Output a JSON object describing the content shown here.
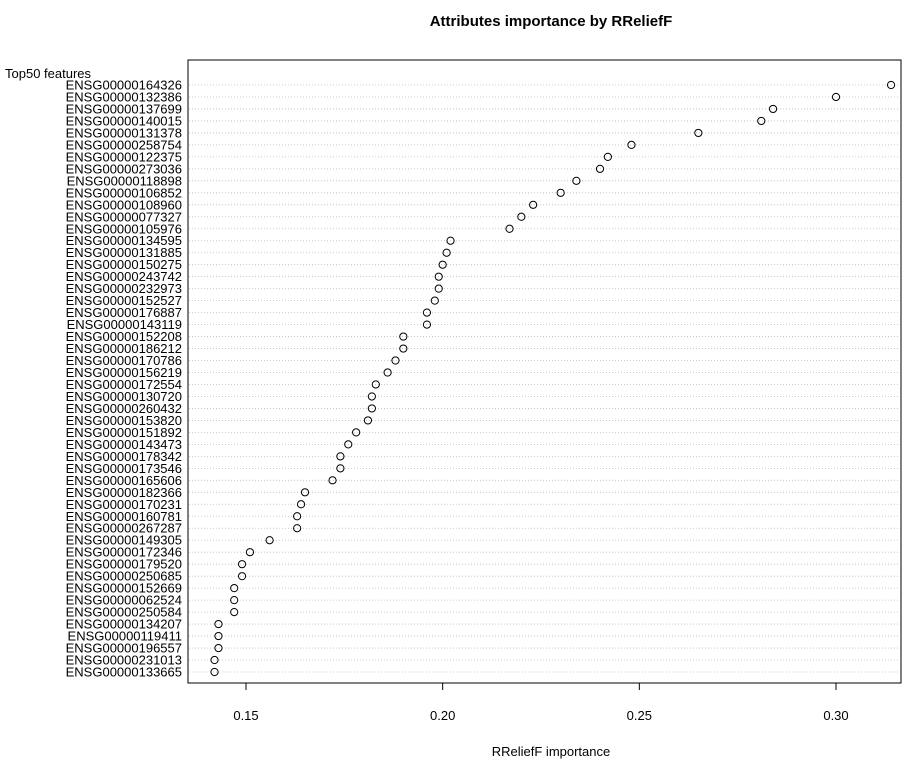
{
  "chart_data": {
    "type": "scatter",
    "title": "Attributes importance by RReliefF",
    "xlabel": "RReliefF importance",
    "ylabel": "Top50 features",
    "xlim": [
      0.1385,
      0.3175
    ],
    "xticks": [
      "0.15",
      "0.20",
      "0.25",
      "0.30"
    ],
    "xtick_values": [
      0.15,
      0.2,
      0.25,
      0.3
    ],
    "grid": "horizontal dotted",
    "marker": "open circle",
    "categories": [
      "ENSG00000164326",
      "ENSG00000132386",
      "ENSG00000137699",
      "ENSG00000140015",
      "ENSG00000131378",
      "ENSG00000258754",
      "ENSG00000122375",
      "ENSG00000273036",
      "ENSG00000118898",
      "ENSG00000106852",
      "ENSG00000108960",
      "ENSG00000077327",
      "ENSG00000105976",
      "ENSG00000134595",
      "ENSG00000131885",
      "ENSG00000150275",
      "ENSG00000243742",
      "ENSG00000232973",
      "ENSG00000152527",
      "ENSG00000176887",
      "ENSG00000143119",
      "ENSG00000152208",
      "ENSG00000186212",
      "ENSG00000170786",
      "ENSG00000156219",
      "ENSG00000172554",
      "ENSG00000130720",
      "ENSG00000260432",
      "ENSG00000153820",
      "ENSG00000151892",
      "ENSG00000143473",
      "ENSG00000178342",
      "ENSG00000173546",
      "ENSG00000165606",
      "ENSG00000182366",
      "ENSG00000170231",
      "ENSG00000160781",
      "ENSG00000267287",
      "ENSG00000149305",
      "ENSG00000172346",
      "ENSG00000179520",
      "ENSG00000250685",
      "ENSG00000152669",
      "ENSG00000062524",
      "ENSG00000250584",
      "ENSG00000134207",
      "ENSG00000119411",
      "ENSG00000196557",
      "ENSG00000231013",
      "ENSG00000133665"
    ],
    "values": [
      0.314,
      0.3,
      0.284,
      0.281,
      0.265,
      0.248,
      0.242,
      0.24,
      0.234,
      0.23,
      0.223,
      0.22,
      0.217,
      0.202,
      0.201,
      0.2,
      0.199,
      0.199,
      0.198,
      0.196,
      0.196,
      0.19,
      0.19,
      0.188,
      0.186,
      0.183,
      0.182,
      0.182,
      0.181,
      0.178,
      0.176,
      0.174,
      0.174,
      0.172,
      0.165,
      0.164,
      0.163,
      0.163,
      0.156,
      0.151,
      0.149,
      0.149,
      0.147,
      0.147,
      0.147,
      0.143,
      0.143,
      0.143,
      0.142,
      0.142
    ]
  }
}
